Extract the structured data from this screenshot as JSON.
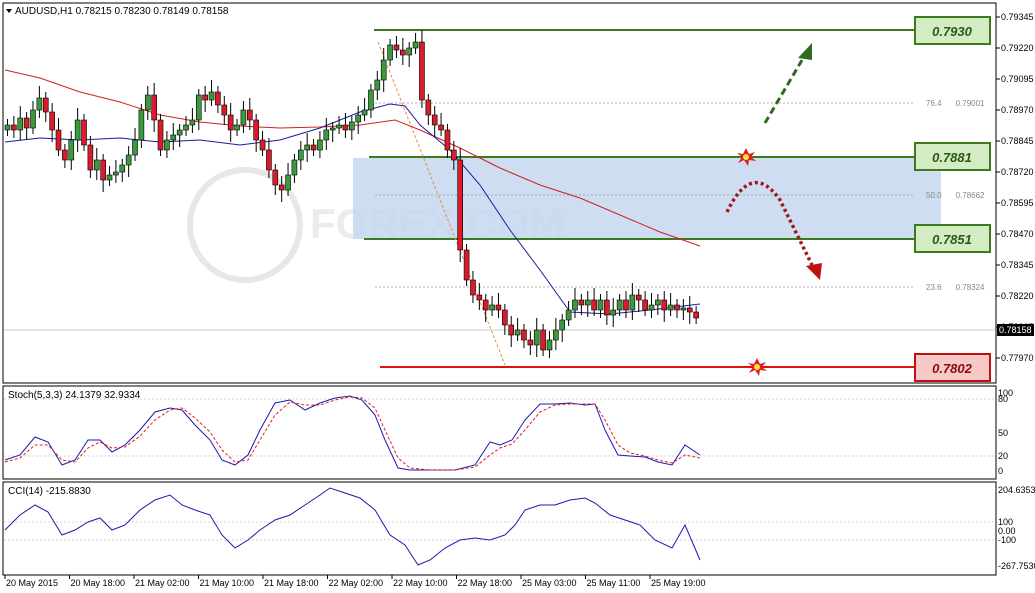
{
  "main": {
    "header": "AUDUSD,H1  0.78215 0.78230 0.78149 0.78158",
    "price_ticks": [
      "0.79345",
      "0.79220",
      "0.79095",
      "0.78970",
      "0.78845",
      "0.78720",
      "0.78595",
      "0.78470",
      "0.78345",
      "0.78220",
      "0.78095",
      "0.77970"
    ],
    "current_price": "0.78158",
    "levels": [
      {
        "label": "0.7930",
        "color": "#3c7a1c",
        "kind": "resistance"
      },
      {
        "label": "0.7881",
        "color": "#3c7a1c",
        "kind": "resistance"
      },
      {
        "label": "0.7851",
        "color": "#3c7a1c",
        "kind": "support"
      },
      {
        "label": "0.7802",
        "color": "#e01010",
        "kind": "support"
      }
    ],
    "fib": [
      {
        "pct": "76.4",
        "price": "0.79001"
      },
      {
        "pct": "50.0",
        "price": "0.78662"
      },
      {
        "pct": "23.6",
        "price": "0.78324"
      }
    ],
    "watermark": "FOREX.COM"
  },
  "stoch": {
    "header": "Stoch(5,3,3) 24.1379 32.9334",
    "ticks": [
      "100",
      "80",
      "50",
      "20",
      "0"
    ]
  },
  "cci": {
    "header": "CCI(14) -215.8830",
    "ticks": [
      "204.6353",
      "100",
      "0.00",
      "-100",
      "-267.7530"
    ]
  },
  "time_axis": [
    "20 May 2015",
    "20 May 18:00",
    "21 May 02:00",
    "21 May 10:00",
    "21 May 18:00",
    "22 May 02:00",
    "22 May 10:00",
    "22 May 18:00",
    "25 May 03:00",
    "25 May 11:00",
    "25 May 19:00"
  ],
  "colors": {
    "up": "#3c9a3c",
    "down": "#d81c2c",
    "level_green": "#3c7a1c",
    "level_red": "#e01010",
    "zone": "#c6d7ee",
    "ma_blue": "#1a1aa0",
    "ma_red": "#d02020"
  }
}
